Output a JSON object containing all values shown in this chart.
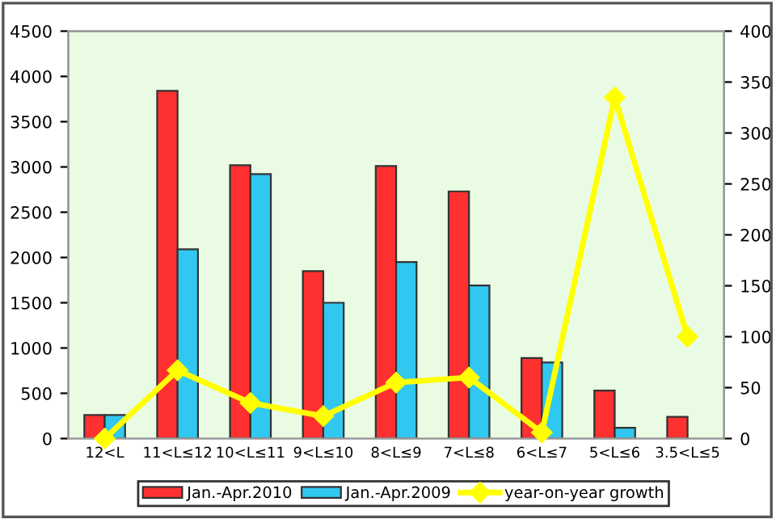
{
  "chart_data": {
    "type": "bar",
    "categories": [
      "12<L",
      "11<L≤12",
      "10<L≤11",
      "9<L≤10",
      "8<L≤9",
      "7<L≤8",
      "6<L≤7",
      "5<L≤6",
      "3.5<L≤5"
    ],
    "series": [
      {
        "name": "Jan.-Apr.2010",
        "color": "#ff3030",
        "values": [
          260,
          3840,
          3020,
          1850,
          3010,
          2730,
          890,
          530,
          240
        ]
      },
      {
        "name": "Jan.-Apr.2009",
        "color": "#30c8f0",
        "values": [
          260,
          2090,
          2920,
          1500,
          1950,
          1690,
          840,
          120,
          null
        ]
      },
      {
        "name": "year-on-year growth",
        "type": "line",
        "axis": "y2",
        "color": "#ffff00",
        "marker": "diamond",
        "values": [
          0,
          67,
          35,
          22,
          55,
          60,
          6,
          335,
          100
        ]
      }
    ],
    "ylim": [
      0,
      4500
    ],
    "yticks": [
      0,
      500,
      1000,
      1500,
      2000,
      2500,
      3000,
      3500,
      4000,
      4500
    ],
    "y2lim": [
      0,
      400
    ],
    "y2ticks": [
      0,
      50,
      100,
      150,
      200,
      250,
      300,
      350,
      400
    ],
    "legend": "bottom",
    "grid": false
  }
}
